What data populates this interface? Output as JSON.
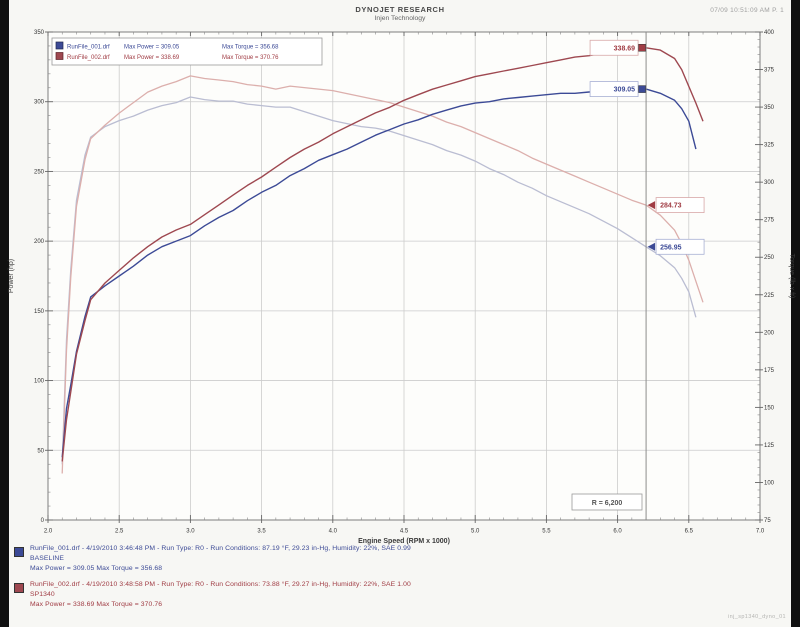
{
  "header": {
    "title": "DYNOJET RESEARCH",
    "subtitle": "Injen Technology",
    "top_right": "07/09 10:51:09 AM   P. 1"
  },
  "chart_data": {
    "type": "line",
    "title": "Injen Technology",
    "xlabel": "Engine Speed (RPM x 1000)",
    "ylabel_left": "Power (hp)",
    "ylabel_right": "Torque (lb x ft)",
    "x_range": [
      2.0,
      7.0
    ],
    "power_range": [
      0,
      350
    ],
    "torque_range": [
      75,
      400
    ],
    "x_ticks": [
      "2.0",
      "2.5",
      "3.0",
      "3.5",
      "4.0",
      "4.5",
      "5.0",
      "5.5",
      "6.0",
      "6.5",
      "7.0"
    ],
    "power_ticks": [
      "0",
      "50",
      "100",
      "150",
      "200",
      "250",
      "300",
      "350"
    ],
    "torque_ticks": [
      "75",
      "100",
      "125",
      "150",
      "175",
      "200",
      "225",
      "250",
      "275",
      "300",
      "325",
      "350",
      "375",
      "400"
    ],
    "grid": true,
    "cursor_rpm": 6.2,
    "cursor_box_label": "R = 6,200",
    "palette": {
      "power_baseline": {
        "stroke": "#3c4a96",
        "label": "#3c4a96",
        "border": "#a8b0d4"
      },
      "power_mod": {
        "stroke": "#9e4850",
        "label": "#a03c44",
        "border": "#d8a8a8"
      },
      "torque_baseline": {
        "stroke": "#babdd2",
        "label": "#3c4a96",
        "border": "#a8b0d4"
      },
      "torque_mod": {
        "stroke": "#dcafac",
        "label": "#a03c44",
        "border": "#d8a8a8"
      }
    },
    "series": [
      {
        "name": "RunFile_001 Torque",
        "key": "torque_baseline",
        "axis": "torque",
        "points": [
          [
            2.1,
            112
          ],
          [
            2.13,
            195
          ],
          [
            2.16,
            242
          ],
          [
            2.2,
            288
          ],
          [
            2.26,
            318
          ],
          [
            2.3,
            330
          ],
          [
            2.4,
            337
          ],
          [
            2.5,
            341
          ],
          [
            2.6,
            344
          ],
          [
            2.7,
            348
          ],
          [
            2.8,
            351
          ],
          [
            2.9,
            353
          ],
          [
            3.0,
            356.68
          ],
          [
            3.1,
            355
          ],
          [
            3.2,
            354
          ],
          [
            3.3,
            354
          ],
          [
            3.4,
            352
          ],
          [
            3.5,
            351
          ],
          [
            3.6,
            350
          ],
          [
            3.7,
            350
          ],
          [
            3.8,
            347
          ],
          [
            3.9,
            344
          ],
          [
            4.0,
            341
          ],
          [
            4.1,
            339
          ],
          [
            4.2,
            337
          ],
          [
            4.3,
            336
          ],
          [
            4.4,
            334
          ],
          [
            4.5,
            331
          ],
          [
            4.6,
            328
          ],
          [
            4.7,
            325
          ],
          [
            4.8,
            321
          ],
          [
            4.9,
            318
          ],
          [
            5.0,
            314
          ],
          [
            5.1,
            309
          ],
          [
            5.2,
            305
          ],
          [
            5.3,
            300
          ],
          [
            5.4,
            296
          ],
          [
            5.5,
            291
          ],
          [
            5.6,
            287
          ],
          [
            5.7,
            283
          ],
          [
            5.8,
            279
          ],
          [
            5.9,
            274
          ],
          [
            6.0,
            269
          ],
          [
            6.1,
            263
          ],
          [
            6.2,
            256.95
          ],
          [
            6.3,
            251
          ],
          [
            6.4,
            243
          ],
          [
            6.45,
            236
          ],
          [
            6.5,
            227
          ],
          [
            6.55,
            210
          ]
        ]
      },
      {
        "name": "RunFile_002 Torque",
        "key": "torque_mod",
        "axis": "torque",
        "points": [
          [
            2.1,
            106
          ],
          [
            2.13,
            188
          ],
          [
            2.16,
            237
          ],
          [
            2.2,
            284
          ],
          [
            2.26,
            315
          ],
          [
            2.3,
            329
          ],
          [
            2.4,
            338
          ],
          [
            2.5,
            346
          ],
          [
            2.6,
            353
          ],
          [
            2.7,
            360
          ],
          [
            2.8,
            364
          ],
          [
            2.9,
            367
          ],
          [
            3.0,
            370.76
          ],
          [
            3.1,
            369
          ],
          [
            3.2,
            368
          ],
          [
            3.3,
            367
          ],
          [
            3.4,
            365
          ],
          [
            3.5,
            364
          ],
          [
            3.6,
            362
          ],
          [
            3.7,
            364
          ],
          [
            3.8,
            363
          ],
          [
            3.9,
            362
          ],
          [
            4.0,
            361
          ],
          [
            4.1,
            359
          ],
          [
            4.2,
            357
          ],
          [
            4.3,
            355
          ],
          [
            4.4,
            353
          ],
          [
            4.5,
            350
          ],
          [
            4.6,
            347
          ],
          [
            4.7,
            344
          ],
          [
            4.8,
            340
          ],
          [
            4.9,
            337
          ],
          [
            5.0,
            333
          ],
          [
            5.1,
            329
          ],
          [
            5.2,
            325
          ],
          [
            5.3,
            321
          ],
          [
            5.4,
            316
          ],
          [
            5.5,
            312
          ],
          [
            5.6,
            308
          ],
          [
            5.7,
            304
          ],
          [
            5.8,
            300
          ],
          [
            5.9,
            296
          ],
          [
            6.0,
            292
          ],
          [
            6.1,
            288
          ],
          [
            6.2,
            284.73
          ],
          [
            6.3,
            278
          ],
          [
            6.4,
            268
          ],
          [
            6.45,
            259
          ],
          [
            6.5,
            248
          ],
          [
            6.55,
            234
          ],
          [
            6.6,
            220
          ]
        ]
      },
      {
        "name": "RunFile_001 Power",
        "key": "power_baseline",
        "axis": "power",
        "points": [
          [
            2.1,
            45
          ],
          [
            2.13,
            80
          ],
          [
            2.16,
            97
          ],
          [
            2.2,
            121
          ],
          [
            2.26,
            146
          ],
          [
            2.3,
            160
          ],
          [
            2.4,
            168
          ],
          [
            2.5,
            175
          ],
          [
            2.6,
            182
          ],
          [
            2.7,
            190
          ],
          [
            2.8,
            196
          ],
          [
            2.9,
            200
          ],
          [
            3.0,
            204
          ],
          [
            3.1,
            211
          ],
          [
            3.2,
            217
          ],
          [
            3.3,
            222
          ],
          [
            3.4,
            229
          ],
          [
            3.5,
            235
          ],
          [
            3.6,
            240
          ],
          [
            3.7,
            247
          ],
          [
            3.8,
            252
          ],
          [
            3.9,
            258
          ],
          [
            4.0,
            262
          ],
          [
            4.1,
            266
          ],
          [
            4.2,
            271
          ],
          [
            4.3,
            276
          ],
          [
            4.4,
            280
          ],
          [
            4.5,
            284
          ],
          [
            4.6,
            287
          ],
          [
            4.7,
            291
          ],
          [
            4.8,
            294
          ],
          [
            4.9,
            297
          ],
          [
            5.0,
            299
          ],
          [
            5.1,
            300
          ],
          [
            5.2,
            302
          ],
          [
            5.3,
            303
          ],
          [
            5.4,
            304
          ],
          [
            5.5,
            305
          ],
          [
            5.6,
            306
          ],
          [
            5.7,
            306
          ],
          [
            5.8,
            307
          ],
          [
            5.9,
            307
          ],
          [
            6.0,
            308
          ],
          [
            6.1,
            308
          ],
          [
            6.2,
            309.05
          ],
          [
            6.3,
            306
          ],
          [
            6.4,
            301
          ],
          [
            6.45,
            295
          ],
          [
            6.5,
            286
          ],
          [
            6.55,
            266
          ]
        ]
      },
      {
        "name": "RunFile_002 Power",
        "key": "power_mod",
        "axis": "power",
        "points": [
          [
            2.1,
            42
          ],
          [
            2.13,
            72
          ],
          [
            2.16,
            92
          ],
          [
            2.2,
            119
          ],
          [
            2.26,
            143
          ],
          [
            2.3,
            158
          ],
          [
            2.4,
            170
          ],
          [
            2.5,
            179
          ],
          [
            2.6,
            188
          ],
          [
            2.7,
            196
          ],
          [
            2.8,
            203
          ],
          [
            2.9,
            208
          ],
          [
            3.0,
            212
          ],
          [
            3.1,
            219
          ],
          [
            3.2,
            226
          ],
          [
            3.3,
            233
          ],
          [
            3.4,
            240
          ],
          [
            3.5,
            246
          ],
          [
            3.6,
            253
          ],
          [
            3.7,
            260
          ],
          [
            3.8,
            266
          ],
          [
            3.9,
            271
          ],
          [
            4.0,
            277
          ],
          [
            4.1,
            282
          ],
          [
            4.2,
            287
          ],
          [
            4.3,
            292
          ],
          [
            4.4,
            296
          ],
          [
            4.5,
            301
          ],
          [
            4.6,
            305
          ],
          [
            4.7,
            309
          ],
          [
            4.8,
            312
          ],
          [
            4.9,
            315
          ],
          [
            5.0,
            318
          ],
          [
            5.1,
            320
          ],
          [
            5.2,
            322
          ],
          [
            5.3,
            324
          ],
          [
            5.4,
            326
          ],
          [
            5.5,
            328
          ],
          [
            5.6,
            330
          ],
          [
            5.7,
            332
          ],
          [
            5.8,
            333
          ],
          [
            5.9,
            335
          ],
          [
            6.0,
            336
          ],
          [
            6.1,
            337
          ],
          [
            6.2,
            338.69
          ],
          [
            6.3,
            337
          ],
          [
            6.4,
            331
          ],
          [
            6.45,
            323
          ],
          [
            6.5,
            311
          ],
          [
            6.55,
            299
          ],
          [
            6.6,
            286
          ]
        ]
      }
    ],
    "callouts": [
      {
        "label": "338.69",
        "key": "power_mod",
        "axis": "power",
        "value": 338.69,
        "side": "left"
      },
      {
        "label": "309.05",
        "key": "power_baseline",
        "axis": "power",
        "value": 309.05,
        "side": "left"
      },
      {
        "label": "284.73",
        "key": "torque_mod",
        "axis": "torque",
        "value": 284.73,
        "side": "right"
      },
      {
        "label": "256.95",
        "key": "torque_baseline",
        "axis": "torque",
        "value": 256.95,
        "side": "right"
      }
    ]
  },
  "legend": {
    "rows": [
      {
        "file": "RunFile_001.drf",
        "max_power": "Max Power = 309.05",
        "max_torque": "Max Torque = 356.68"
      },
      {
        "file": "RunFile_002.drf",
        "max_power": "Max Power = 338.69",
        "max_torque": "Max Torque = 370.76"
      }
    ]
  },
  "footer": {
    "runs": [
      {
        "line1": "RunFile_001.drf - 4/19/2010 3:46:48 PM - Run Type: R0 - Run Conditions: 87.19 °F, 29.23 in-Hg, Humidity: 22%, SAE 0.99",
        "line2": "BASELINE",
        "line3": "Max Power = 309.05    Max Torque = 356.68"
      },
      {
        "line1": "RunFile_002.drf - 4/19/2010 3:48:58 PM - Run Type: R0 - Run Conditions: 73.88 °F, 29.27 in-Hg, Humidity: 22%, SAE 1.00",
        "line2": "SP1340",
        "line3": "Max Power = 338.69    Max Torque = 370.76"
      }
    ],
    "watermark": "inj_sp1340_dyno_01"
  }
}
